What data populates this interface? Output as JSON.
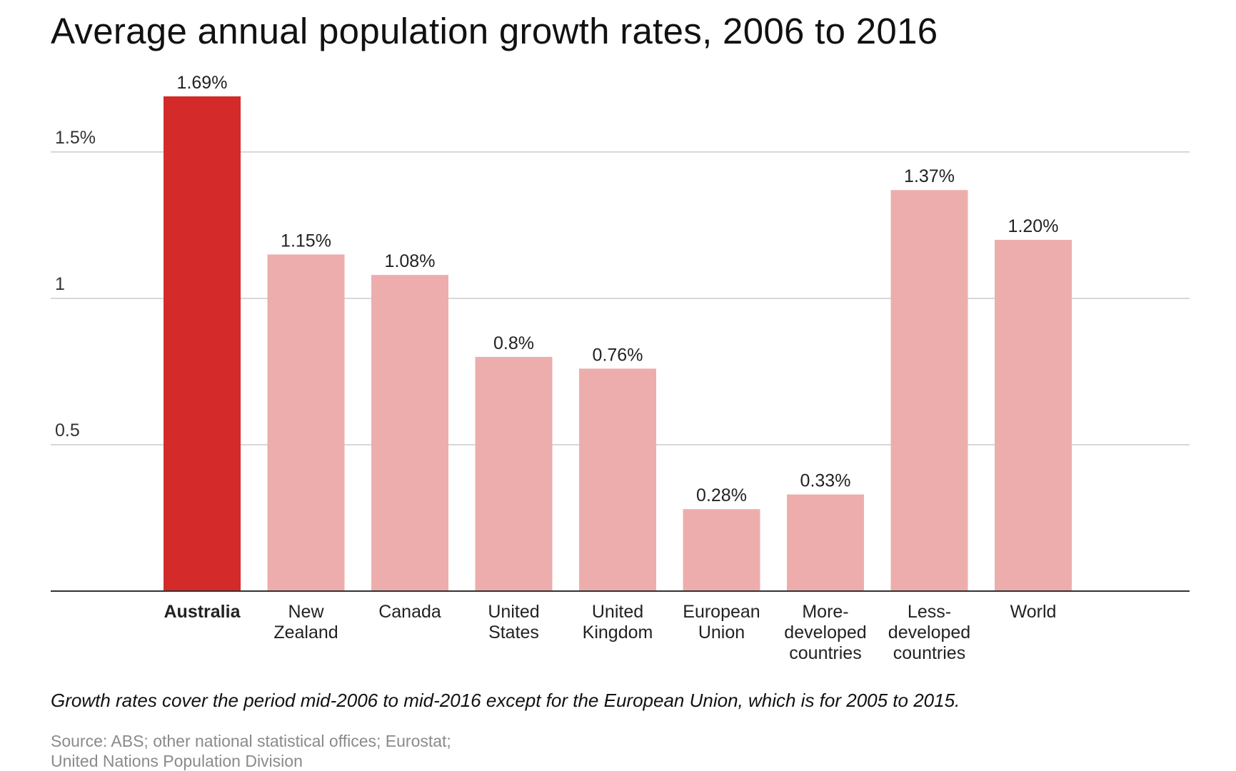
{
  "chart_data": {
    "type": "bar",
    "title": "Average annual population growth rates, 2006 to 2016",
    "categories": [
      {
        "lines": [
          "Australia"
        ],
        "highlight": true
      },
      {
        "lines": [
          "New",
          "Zealand"
        ]
      },
      {
        "lines": [
          "Canada"
        ]
      },
      {
        "lines": [
          "United",
          "States"
        ]
      },
      {
        "lines": [
          "United",
          "Kingdom"
        ]
      },
      {
        "lines": [
          "European",
          "Union"
        ]
      },
      {
        "lines": [
          "More-",
          "developed",
          "countries"
        ]
      },
      {
        "lines": [
          "Less-",
          "developed",
          "countries"
        ]
      },
      {
        "lines": [
          "World"
        ]
      }
    ],
    "values": [
      1.69,
      1.15,
      1.08,
      0.8,
      0.76,
      0.28,
      0.33,
      1.37,
      1.2
    ],
    "value_labels": [
      "1.69%",
      "1.15%",
      "1.08%",
      "0.8%",
      "0.76%",
      "0.28%",
      "0.33%",
      "1.37%",
      "1.20%"
    ],
    "yticks": [
      {
        "value": 0.5,
        "label": "0.5"
      },
      {
        "value": 1,
        "label": "1"
      },
      {
        "value": 1.5,
        "label": "1.5%"
      }
    ],
    "ylim": [
      0,
      1.69
    ],
    "xlabel": "",
    "ylabel": "",
    "grid": true,
    "colors": {
      "highlight": "#d42a2a",
      "bar": "#eeadad",
      "grid": "#cccccc",
      "axis": "#333333"
    },
    "note": "Growth rates cover the period mid-2006 to mid-2016 except for the European Union, which is for 2005 to 2015.",
    "source": [
      "Source: ABS; other national statistical offices; Eurostat;",
      "United Nations Population Division"
    ]
  }
}
